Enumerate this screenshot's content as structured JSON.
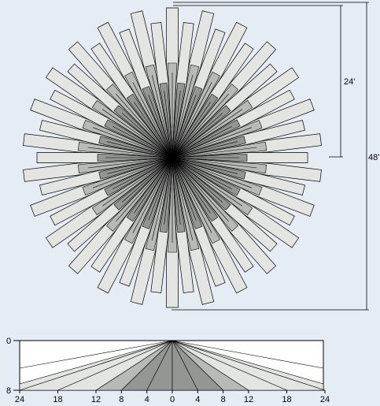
{
  "dimensions": {
    "radius_label": "24'",
    "diameter_label": "48'"
  },
  "profile": {
    "y_axis_labels": [
      "0",
      "8"
    ],
    "x_axis_labels": [
      "24",
      "18",
      "12",
      "8",
      "4",
      "0",
      "4",
      "8",
      "12",
      "18",
      "24"
    ]
  },
  "colors": {
    "background": "#e6ecf3",
    "light_fill": "#e3e5e3",
    "mid_fill": "#b8bab8",
    "dark_fill": "#949694",
    "line": "#000000"
  }
}
